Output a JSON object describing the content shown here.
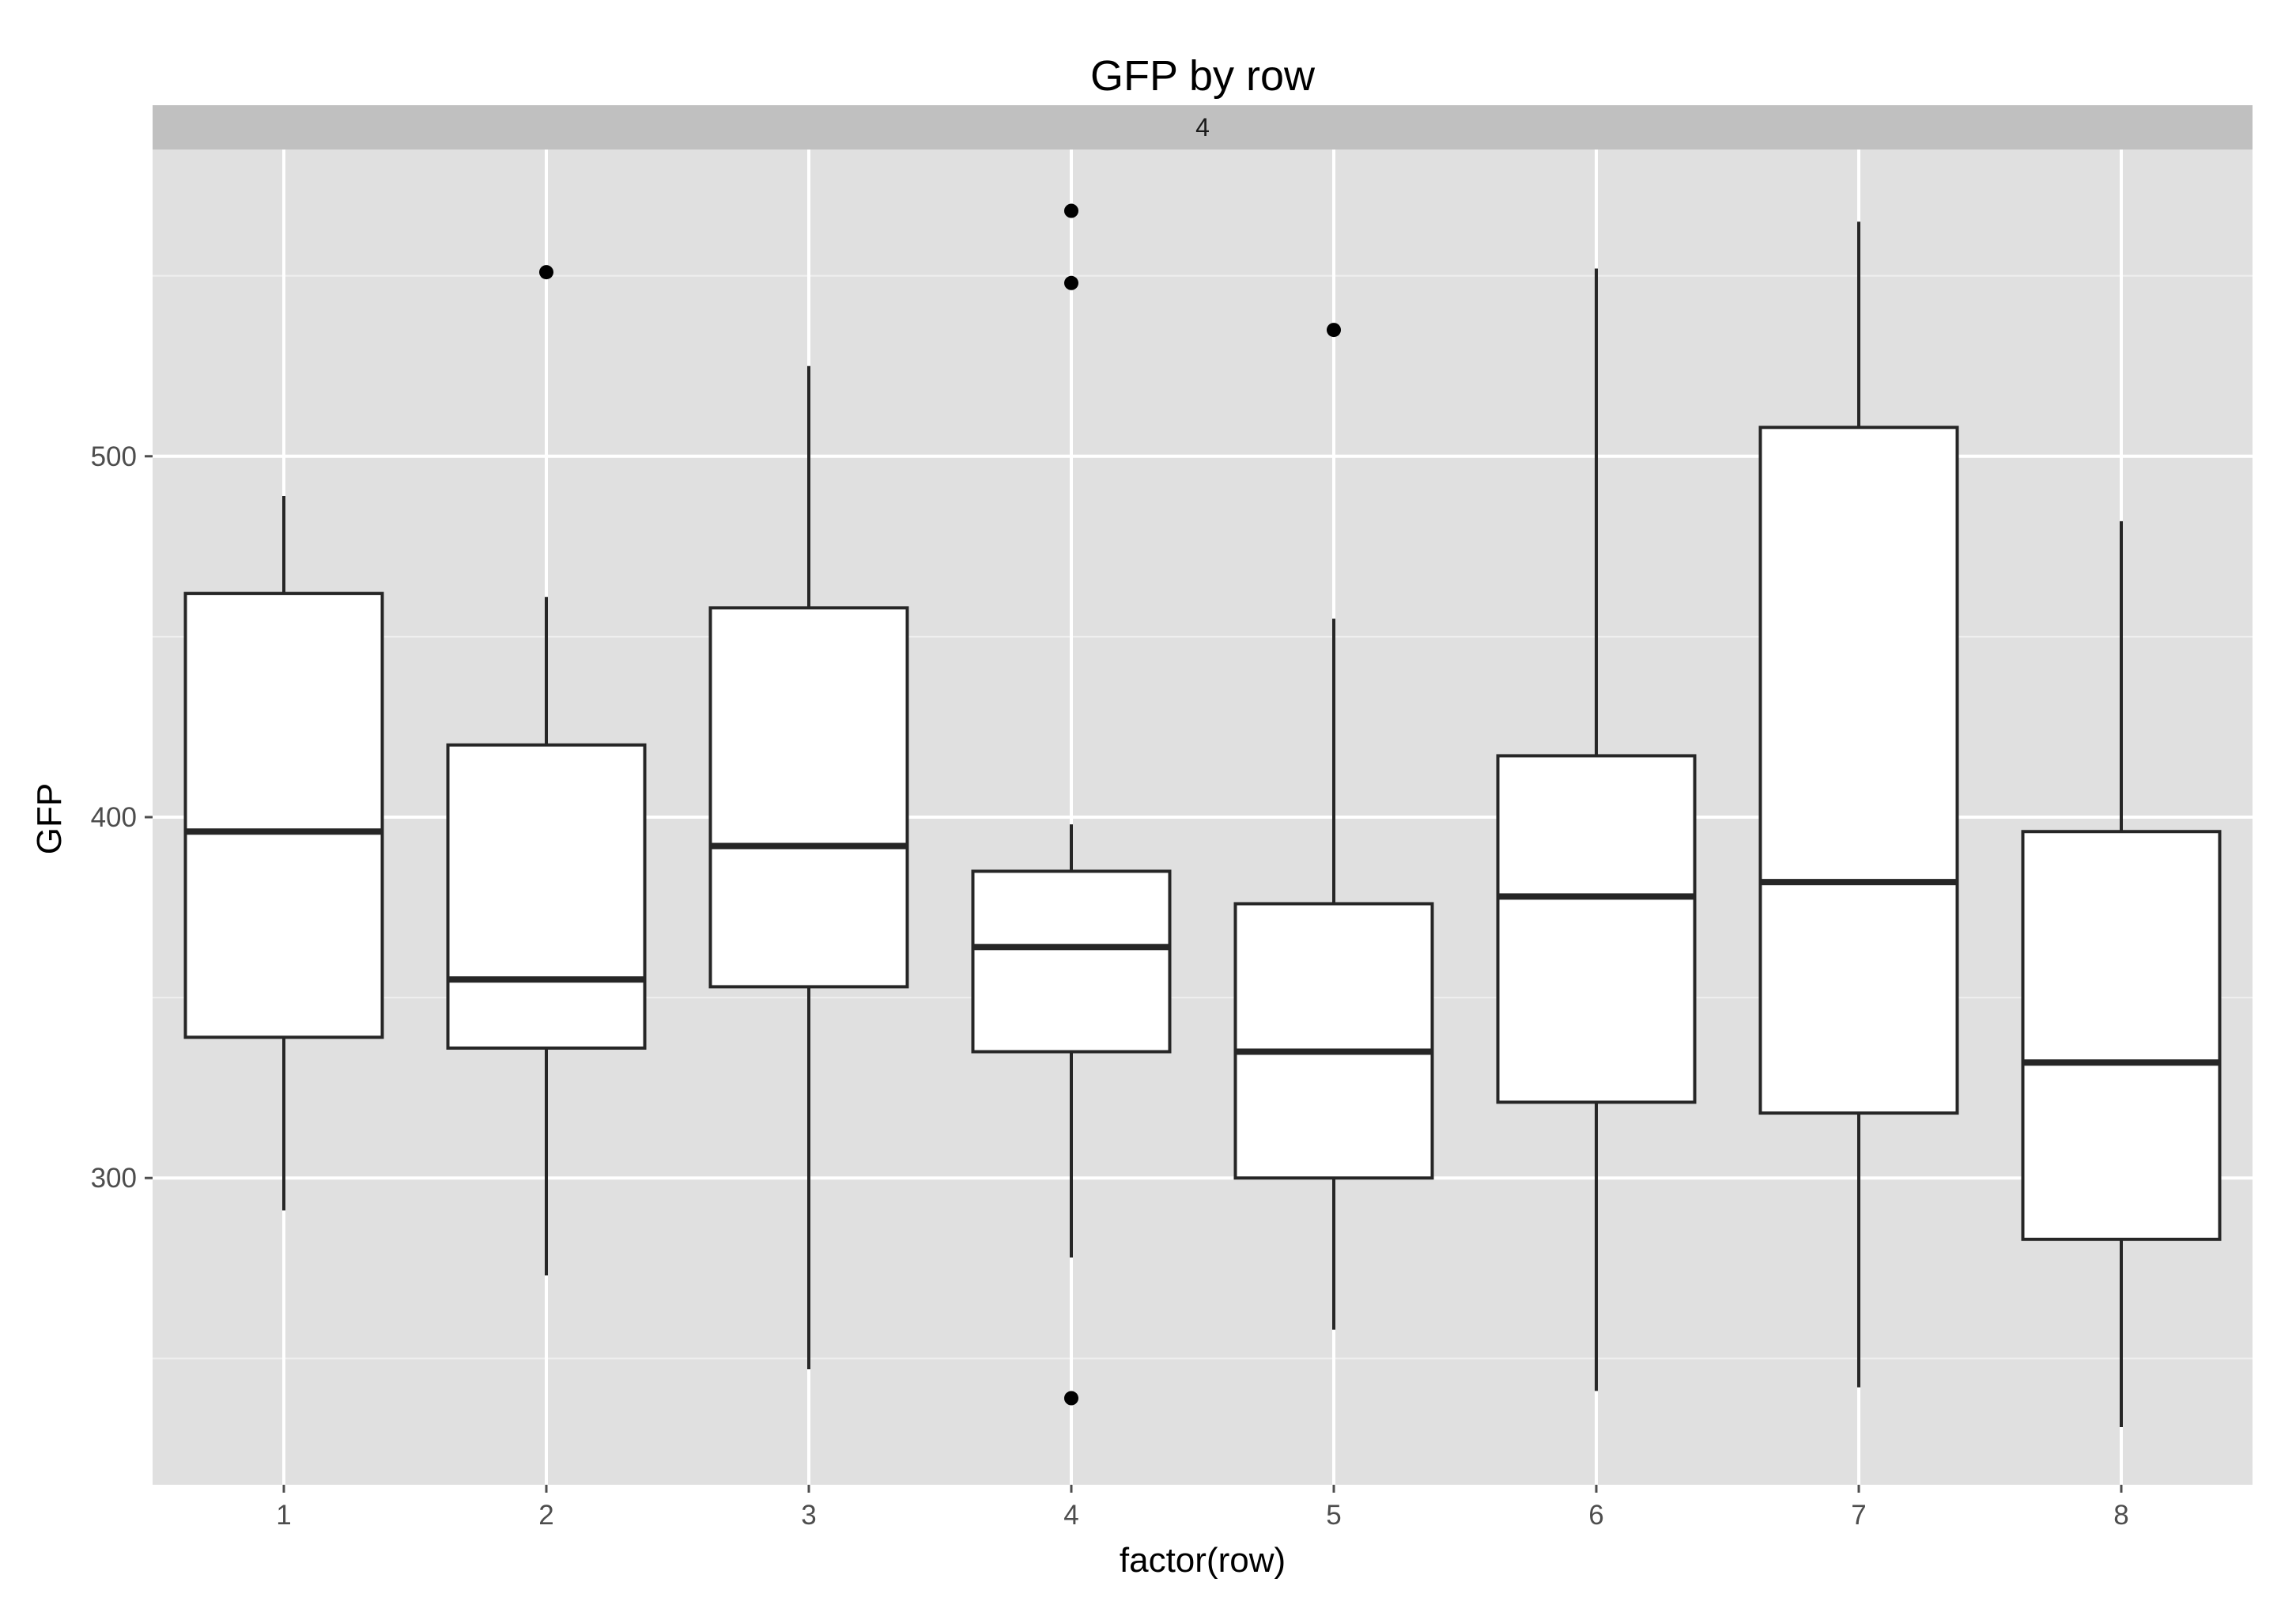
{
  "chart_data": {
    "type": "boxplot",
    "title": "GFP by row",
    "facet_label": "4",
    "xlabel": "factor(row)",
    "ylabel": "GFP",
    "categories": [
      "1",
      "2",
      "3",
      "4",
      "5",
      "6",
      "7",
      "8"
    ],
    "ylim": [
      215,
      585
    ],
    "y_major_ticks": [
      300,
      400,
      500
    ],
    "y_minor_ticks": [
      250,
      350,
      450,
      550
    ],
    "grid": true,
    "colors": {
      "panel_background": "#e0e0e0",
      "strip_background": "#c0c0c0",
      "grid_major": "#ffffff",
      "grid_minor": "#efefef",
      "box_fill": "#ffffff",
      "box_line": "#262626"
    },
    "boxes": [
      {
        "category": "1",
        "whisker_low": 291,
        "q1": 339,
        "median": 396,
        "q3": 462,
        "whisker_high": 489,
        "outliers": []
      },
      {
        "category": "2",
        "whisker_low": 273,
        "q1": 336,
        "median": 355,
        "q3": 420,
        "whisker_high": 461,
        "outliers": [
          551
        ]
      },
      {
        "category": "3",
        "whisker_low": 247,
        "q1": 353,
        "median": 392,
        "q3": 458,
        "whisker_high": 525,
        "outliers": []
      },
      {
        "category": "4",
        "whisker_low": 278,
        "q1": 335,
        "median": 364,
        "q3": 385,
        "whisker_high": 398,
        "outliers": [
          568,
          548,
          239
        ]
      },
      {
        "category": "5",
        "whisker_low": 258,
        "q1": 300,
        "median": 335,
        "q3": 376,
        "whisker_high": 455,
        "outliers": [
          535
        ]
      },
      {
        "category": "6",
        "whisker_low": 241,
        "q1": 321,
        "median": 378,
        "q3": 417,
        "whisker_high": 552,
        "outliers": []
      },
      {
        "category": "7",
        "whisker_low": 242,
        "q1": 318,
        "median": 382,
        "q3": 508,
        "whisker_high": 565,
        "outliers": []
      },
      {
        "category": "8",
        "whisker_low": 231,
        "q1": 283,
        "median": 332,
        "q3": 396,
        "whisker_high": 482,
        "outliers": []
      }
    ]
  }
}
